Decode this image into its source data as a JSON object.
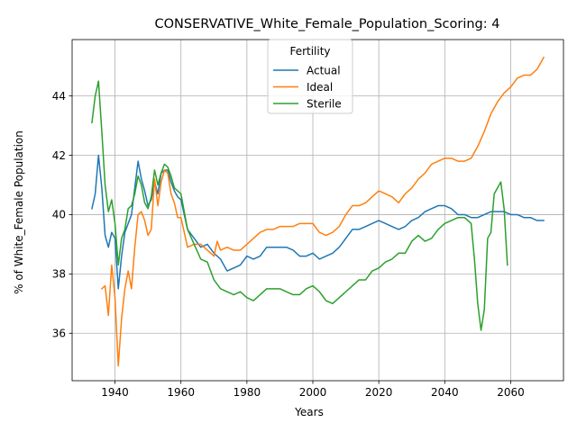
{
  "chart_data": {
    "type": "line",
    "title": "CONSERVATIVE_White_Female_Population_Scoring: 4",
    "xlabel": "Years",
    "ylabel": "% of White_Female Population",
    "xlim": [
      1927,
      2076
    ],
    "ylim": [
      34.4,
      45.9
    ],
    "xticks": [
      1940,
      1960,
      1980,
      2000,
      2020,
      2040,
      2060
    ],
    "yticks": [
      36,
      38,
      40,
      42,
      44
    ],
    "grid": true,
    "legend": {
      "title": "Fertility",
      "placement": "top-center"
    },
    "series": [
      {
        "name": "Actual",
        "color": "#1f77b4",
        "x": [
          1933,
          1934,
          1935,
          1936,
          1937,
          1938,
          1939,
          1940,
          1941,
          1942,
          1943,
          1944,
          1945,
          1946,
          1947,
          1948,
          1949,
          1950,
          1951,
          1952,
          1953,
          1954,
          1955,
          1956,
          1957,
          1958,
          1959,
          1960,
          1962,
          1964,
          1966,
          1968,
          1970,
          1972,
          1974,
          1976,
          1978,
          1980,
          1982,
          1984,
          1986,
          1988,
          1990,
          1992,
          1994,
          1996,
          1998,
          2000,
          2002,
          2004,
          2006,
          2008,
          2010,
          2012,
          2014,
          2016,
          2018,
          2020,
          2022,
          2024,
          2026,
          2028,
          2030,
          2032,
          2034,
          2036,
          2038,
          2040,
          2042,
          2044,
          2046,
          2048,
          2050,
          2052,
          2054,
          2056,
          2058,
          2060,
          2062,
          2064,
          2066,
          2068,
          2070
        ],
        "values": [
          40.2,
          40.7,
          42.0,
          40.9,
          39.3,
          38.9,
          39.4,
          39.2,
          37.5,
          38.6,
          39.4,
          39.7,
          40.0,
          40.9,
          41.8,
          41.2,
          40.8,
          40.3,
          40.5,
          41.1,
          40.7,
          41.4,
          41.5,
          41.5,
          41.1,
          40.8,
          40.6,
          40.5,
          39.5,
          39.2,
          38.9,
          39.0,
          38.7,
          38.5,
          38.1,
          38.2,
          38.3,
          38.6,
          38.5,
          38.6,
          38.9,
          38.9,
          38.9,
          38.9,
          38.8,
          38.6,
          38.6,
          38.7,
          38.5,
          38.6,
          38.7,
          38.9,
          39.2,
          39.5,
          39.5,
          39.6,
          39.7,
          39.8,
          39.7,
          39.6,
          39.5,
          39.6,
          39.8,
          39.9,
          40.1,
          40.2,
          40.3,
          40.3,
          40.2,
          40.0,
          40.0,
          39.9,
          39.9,
          40.0,
          40.1,
          40.1,
          40.1,
          40.0,
          40.0,
          39.9,
          39.9,
          39.8,
          39.8
        ]
      },
      {
        "name": "Ideal",
        "color": "#ff7f0e",
        "x": [
          1936,
          1937,
          1938,
          1939,
          1940,
          1941,
          1942,
          1943,
          1944,
          1945,
          1946,
          1947,
          1948,
          1949,
          1950,
          1951,
          1952,
          1953,
          1954,
          1955,
          1956,
          1957,
          1958,
          1959,
          1960,
          1962,
          1964,
          1966,
          1968,
          1970,
          1971,
          1972,
          1974,
          1976,
          1978,
          1980,
          1982,
          1984,
          1986,
          1988,
          1990,
          1992,
          1994,
          1996,
          1998,
          2000,
          2002,
          2004,
          2006,
          2008,
          2010,
          2012,
          2014,
          2016,
          2018,
          2020,
          2022,
          2024,
          2026,
          2028,
          2030,
          2032,
          2034,
          2036,
          2038,
          2040,
          2042,
          2044,
          2046,
          2048,
          2050,
          2052,
          2054,
          2056,
          2058,
          2060,
          2062,
          2064,
          2066,
          2068,
          2070
        ],
        "values": [
          37.5,
          37.6,
          36.6,
          38.3,
          37.2,
          34.9,
          36.5,
          37.5,
          38.1,
          37.5,
          38.9,
          40.0,
          40.1,
          39.8,
          39.3,
          39.5,
          41.2,
          40.3,
          41.1,
          41.5,
          41.4,
          40.7,
          40.4,
          39.9,
          39.9,
          38.9,
          39.0,
          39.0,
          38.8,
          38.6,
          39.1,
          38.8,
          38.9,
          38.8,
          38.8,
          39.0,
          39.2,
          39.4,
          39.5,
          39.5,
          39.6,
          39.6,
          39.6,
          39.7,
          39.7,
          39.7,
          39.4,
          39.3,
          39.4,
          39.6,
          40.0,
          40.3,
          40.3,
          40.4,
          40.6,
          40.8,
          40.7,
          40.6,
          40.4,
          40.7,
          40.9,
          41.2,
          41.4,
          41.7,
          41.8,
          41.9,
          41.9,
          41.8,
          41.8,
          41.9,
          42.3,
          42.8,
          43.4,
          43.8,
          44.1,
          44.3,
          44.6,
          44.7,
          44.7,
          44.9,
          45.3
        ]
      },
      {
        "name": "Sterile",
        "color": "#2ca02c",
        "x": [
          1933,
          1934,
          1935,
          1936,
          1937,
          1938,
          1939,
          1940,
          1941,
          1942,
          1943,
          1944,
          1945,
          1946,
          1947,
          1948,
          1949,
          1950,
          1951,
          1952,
          1953,
          1954,
          1955,
          1956,
          1957,
          1958,
          1959,
          1960,
          1962,
          1964,
          1966,
          1968,
          1970,
          1972,
          1974,
          1976,
          1978,
          1980,
          1982,
          1984,
          1986,
          1988,
          1990,
          1992,
          1994,
          1996,
          1998,
          2000,
          2002,
          2004,
          2006,
          2008,
          2010,
          2012,
          2014,
          2016,
          2018,
          2020,
          2022,
          2024,
          2026,
          2028,
          2030,
          2032,
          2034,
          2036,
          2038,
          2040,
          2042,
          2044,
          2046,
          2048,
          2049,
          2050,
          2051,
          2052,
          2053,
          2054,
          2055,
          2056,
          2057,
          2058,
          2059
        ],
        "values": [
          43.1,
          44.0,
          44.5,
          42.8,
          41.0,
          40.1,
          40.5,
          39.7,
          38.3,
          39.2,
          39.5,
          40.2,
          40.3,
          40.7,
          41.3,
          41.0,
          40.4,
          40.2,
          40.6,
          41.5,
          41.0,
          41.4,
          41.7,
          41.6,
          41.3,
          40.9,
          40.8,
          40.7,
          39.5,
          39.0,
          38.5,
          38.4,
          37.8,
          37.5,
          37.4,
          37.3,
          37.4,
          37.2,
          37.1,
          37.3,
          37.5,
          37.5,
          37.5,
          37.4,
          37.3,
          37.3,
          37.5,
          37.6,
          37.4,
          37.1,
          37.0,
          37.2,
          37.4,
          37.6,
          37.8,
          37.8,
          38.1,
          38.2,
          38.4,
          38.5,
          38.7,
          38.7,
          39.1,
          39.3,
          39.1,
          39.2,
          39.5,
          39.7,
          39.8,
          39.9,
          39.9,
          39.7,
          38.5,
          37.0,
          36.1,
          36.8,
          39.2,
          39.4,
          40.7,
          40.9,
          41.1,
          40.2,
          38.3
        ]
      }
    ]
  }
}
